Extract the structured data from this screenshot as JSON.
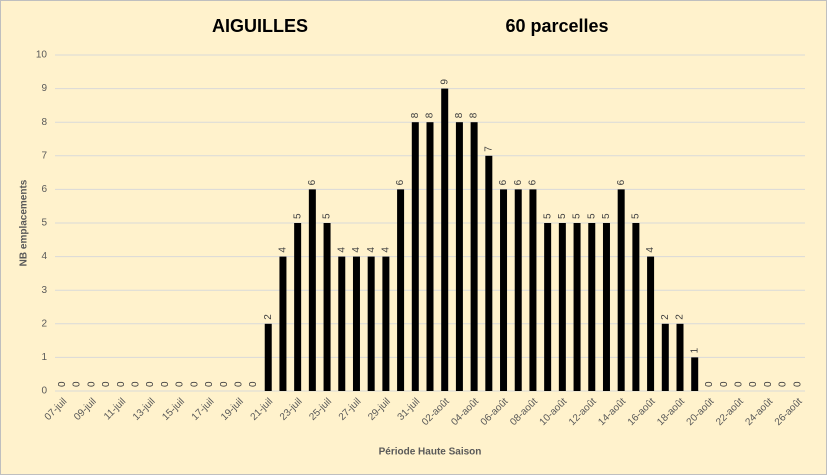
{
  "chart_data": {
    "type": "bar",
    "title": "AIGUILLES",
    "subtitle": "60 parcelles",
    "x_label": "Période Haute Saison",
    "y_label": "NB emplacements",
    "color": "#000000",
    "grid": true,
    "ylim": [
      0,
      10
    ],
    "yticks": [
      0,
      1,
      2,
      3,
      4,
      5,
      6,
      7,
      8,
      9,
      10
    ],
    "categories": [
      "07-juil",
      null,
      "09-juil",
      null,
      "11-juil",
      null,
      "13-juil",
      null,
      "15-juil",
      null,
      "17-juil",
      null,
      "19-juil",
      null,
      "21-juil",
      null,
      "23-juil",
      null,
      "25-juil",
      null,
      "27-juil",
      null,
      "29-juil",
      null,
      "31-juil",
      null,
      "02-août",
      null,
      "04-août",
      null,
      "06-août",
      null,
      "08-août",
      null,
      "10-août",
      null,
      "12-août",
      null,
      "14-août",
      null,
      "16-août",
      null,
      "18-août",
      null,
      "20-août",
      null,
      "22-août",
      null,
      "24-août",
      null,
      "26-août"
    ],
    "values": [
      0,
      0,
      0,
      0,
      0,
      0,
      0,
      0,
      0,
      0,
      0,
      0,
      0,
      0,
      2,
      4,
      5,
      6,
      5,
      4,
      4,
      4,
      4,
      6,
      8,
      8,
      9,
      8,
      8,
      7,
      6,
      6,
      6,
      5,
      5,
      5,
      5,
      5,
      6,
      5,
      4,
      2,
      2,
      1,
      0,
      0,
      0,
      0,
      0,
      0,
      0
    ]
  }
}
